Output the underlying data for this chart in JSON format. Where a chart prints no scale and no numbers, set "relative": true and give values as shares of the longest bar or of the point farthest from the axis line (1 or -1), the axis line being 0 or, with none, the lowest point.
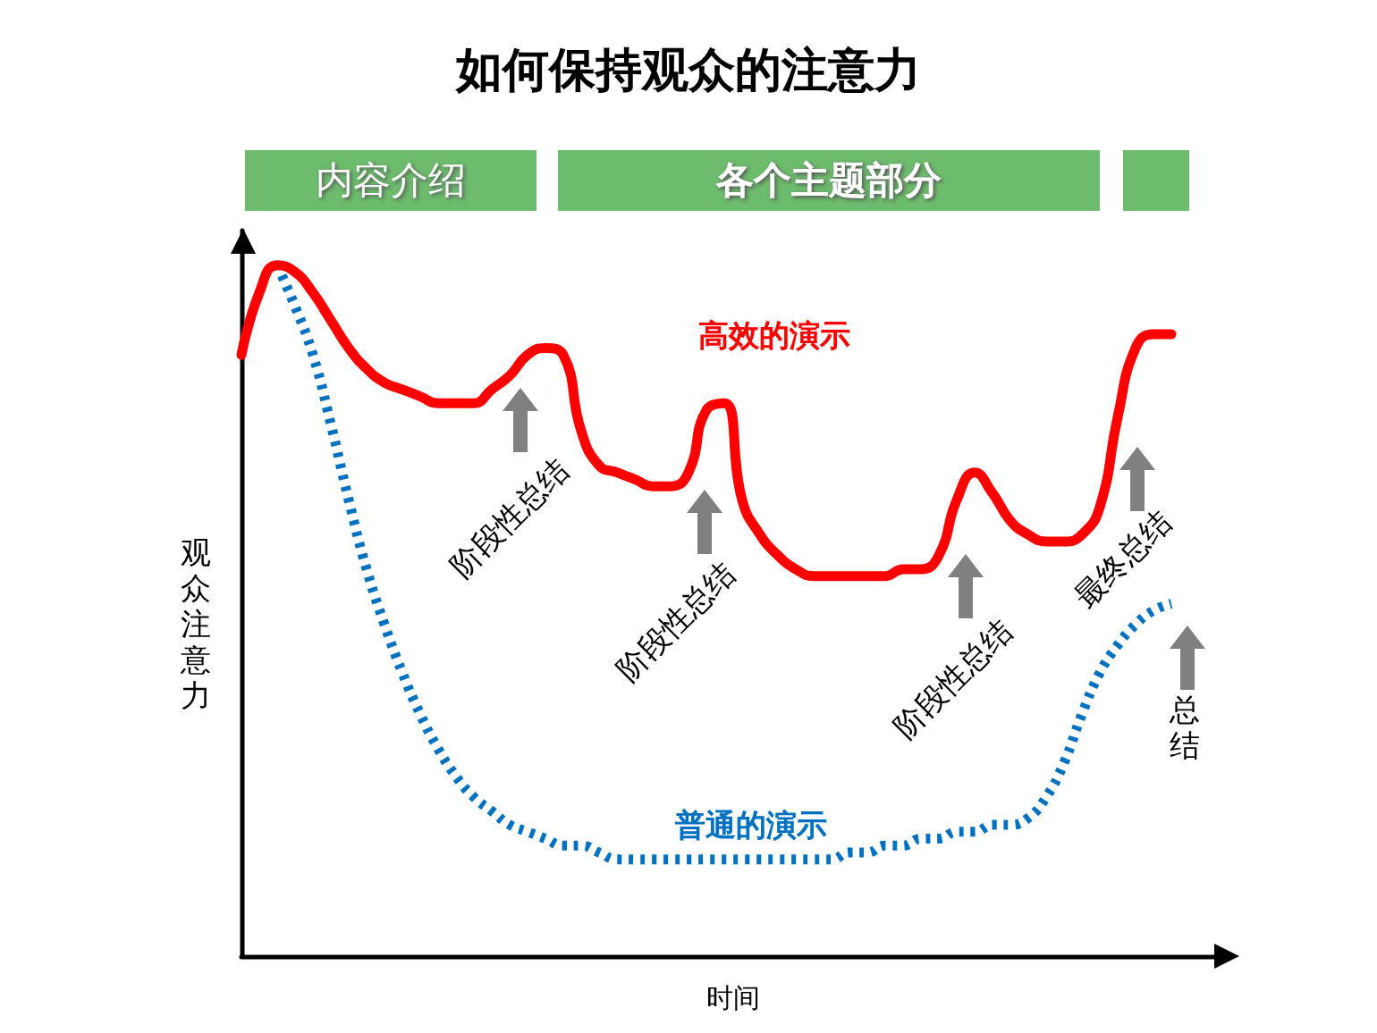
{
  "chart_data": {
    "type": "line",
    "title": "如何保持观众的注意力",
    "xlabel": "时间",
    "ylabel": "观众注意力",
    "relative": true,
    "marker": "none",
    "grid": false,
    "categories": [
      null,
      null,
      null,
      null,
      null,
      null,
      null,
      null,
      null,
      null,
      null,
      null,
      null,
      null,
      null,
      null,
      null,
      null,
      null,
      null,
      null,
      null,
      null,
      null,
      null,
      null,
      null,
      null,
      null,
      null,
      null,
      null,
      null,
      null,
      null,
      null,
      null,
      null,
      null,
      null,
      null,
      null,
      null,
      null,
      null,
      null,
      null,
      null,
      null,
      null,
      null,
      null,
      null
    ],
    "series": [
      {
        "name": "高效的演示",
        "color": "#ff0000",
        "line_style": "solid",
        "values": [
          0.87,
          0.96,
          1,
          0.99,
          0.96,
          0.92,
          0.88,
          0.85,
          0.83,
          0.82,
          0.81,
          0.8,
          0.8,
          0.8,
          0.82,
          0.84,
          0.87,
          0.88,
          0.87,
          0.76,
          0.71,
          0.7,
          0.69,
          0.68,
          0.68,
          0.7,
          0.79,
          0.8,
          0.66,
          0.61,
          0.58,
          0.56,
          0.55,
          0.55,
          0.55,
          0.55,
          0.55,
          0.56,
          0.56,
          0.58,
          0.66,
          0.7,
          0.67,
          0.63,
          0.61,
          0.6,
          0.6,
          0.61,
          0.65,
          0.78,
          0.88,
          0.9,
          0.9
        ]
      },
      {
        "name": "普通的演示",
        "color": "#0070c0",
        "line_style": "dotted",
        "values": [
          null,
          null,
          1,
          0.94,
          0.87,
          0.77,
          0.66,
          0.56,
          0.48,
          0.41,
          0.35,
          0.3,
          0.26,
          0.23,
          0.21,
          0.19,
          0.18,
          0.17,
          0.16,
          0.16,
          0.15,
          0.14,
          0.14,
          0.14,
          0.14,
          0.14,
          0.14,
          0.14,
          0.14,
          0.14,
          0.14,
          0.14,
          0.14,
          0.14,
          0.15,
          0.15,
          0.16,
          0.16,
          0.17,
          0.17,
          0.18,
          0.18,
          0.19,
          0.19,
          0.2,
          0.23,
          0.28,
          0.35,
          0.41,
          0.45,
          0.48,
          0.5,
          0.51
        ]
      }
    ],
    "annotations": [
      "内容介绍",
      "各个主题部分",
      "阶段性总结",
      "阶段性总结",
      "阶段性总结",
      "最终总结",
      "总结"
    ]
  }
}
